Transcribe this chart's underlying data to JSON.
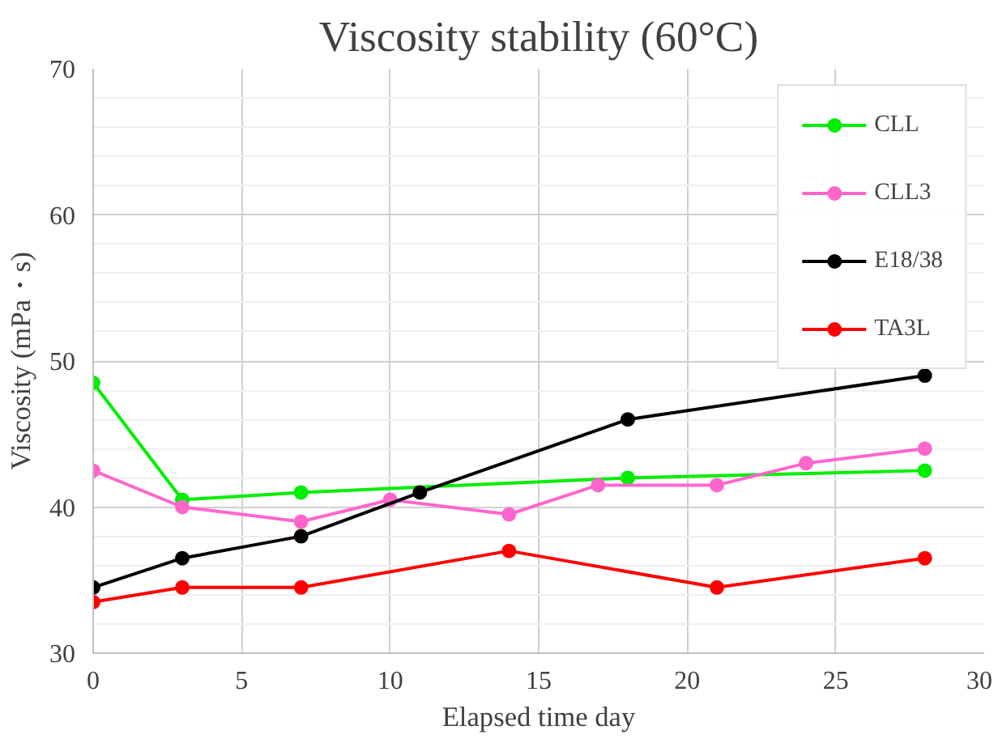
{
  "chart_data": {
    "type": "line",
    "title": "Viscosity stability (60°C)",
    "xlabel": "Elapsed time day",
    "ylabel": "Viscosity (mPa・s)",
    "xlim": [
      0,
      30
    ],
    "xticks": [
      0,
      5,
      10,
      15,
      20,
      25,
      30
    ],
    "ylim": [
      30,
      70
    ],
    "yticks": [
      30,
      40,
      50,
      60,
      70
    ],
    "grid": true,
    "legend": "top right",
    "marker": "circle",
    "line_style": "solid",
    "series": [
      {
        "name": "CLL",
        "color": "#00ee00",
        "x": [
          0,
          3,
          7,
          18,
          28
        ],
        "values": [
          48.5,
          40.5,
          41,
          42,
          42.5
        ]
      },
      {
        "name": "CLL3",
        "color": "#ff66cc",
        "x": [
          0,
          3,
          7,
          10,
          14,
          17,
          21,
          24,
          28
        ],
        "values": [
          42.5,
          40,
          39,
          40.5,
          39.5,
          41.5,
          41.5,
          43,
          44
        ]
      },
      {
        "name": "E18/38",
        "color": "#000000",
        "x": [
          0,
          3,
          7,
          11,
          18,
          28
        ],
        "values": [
          34.5,
          36.5,
          38,
          41,
          46,
          49
        ]
      },
      {
        "name": "TA3L",
        "color": "#ff0000",
        "x": [
          0,
          3,
          7,
          14,
          21,
          28
        ],
        "values": [
          33.5,
          34.5,
          34.5,
          37,
          34.5,
          36.5
        ]
      }
    ]
  }
}
